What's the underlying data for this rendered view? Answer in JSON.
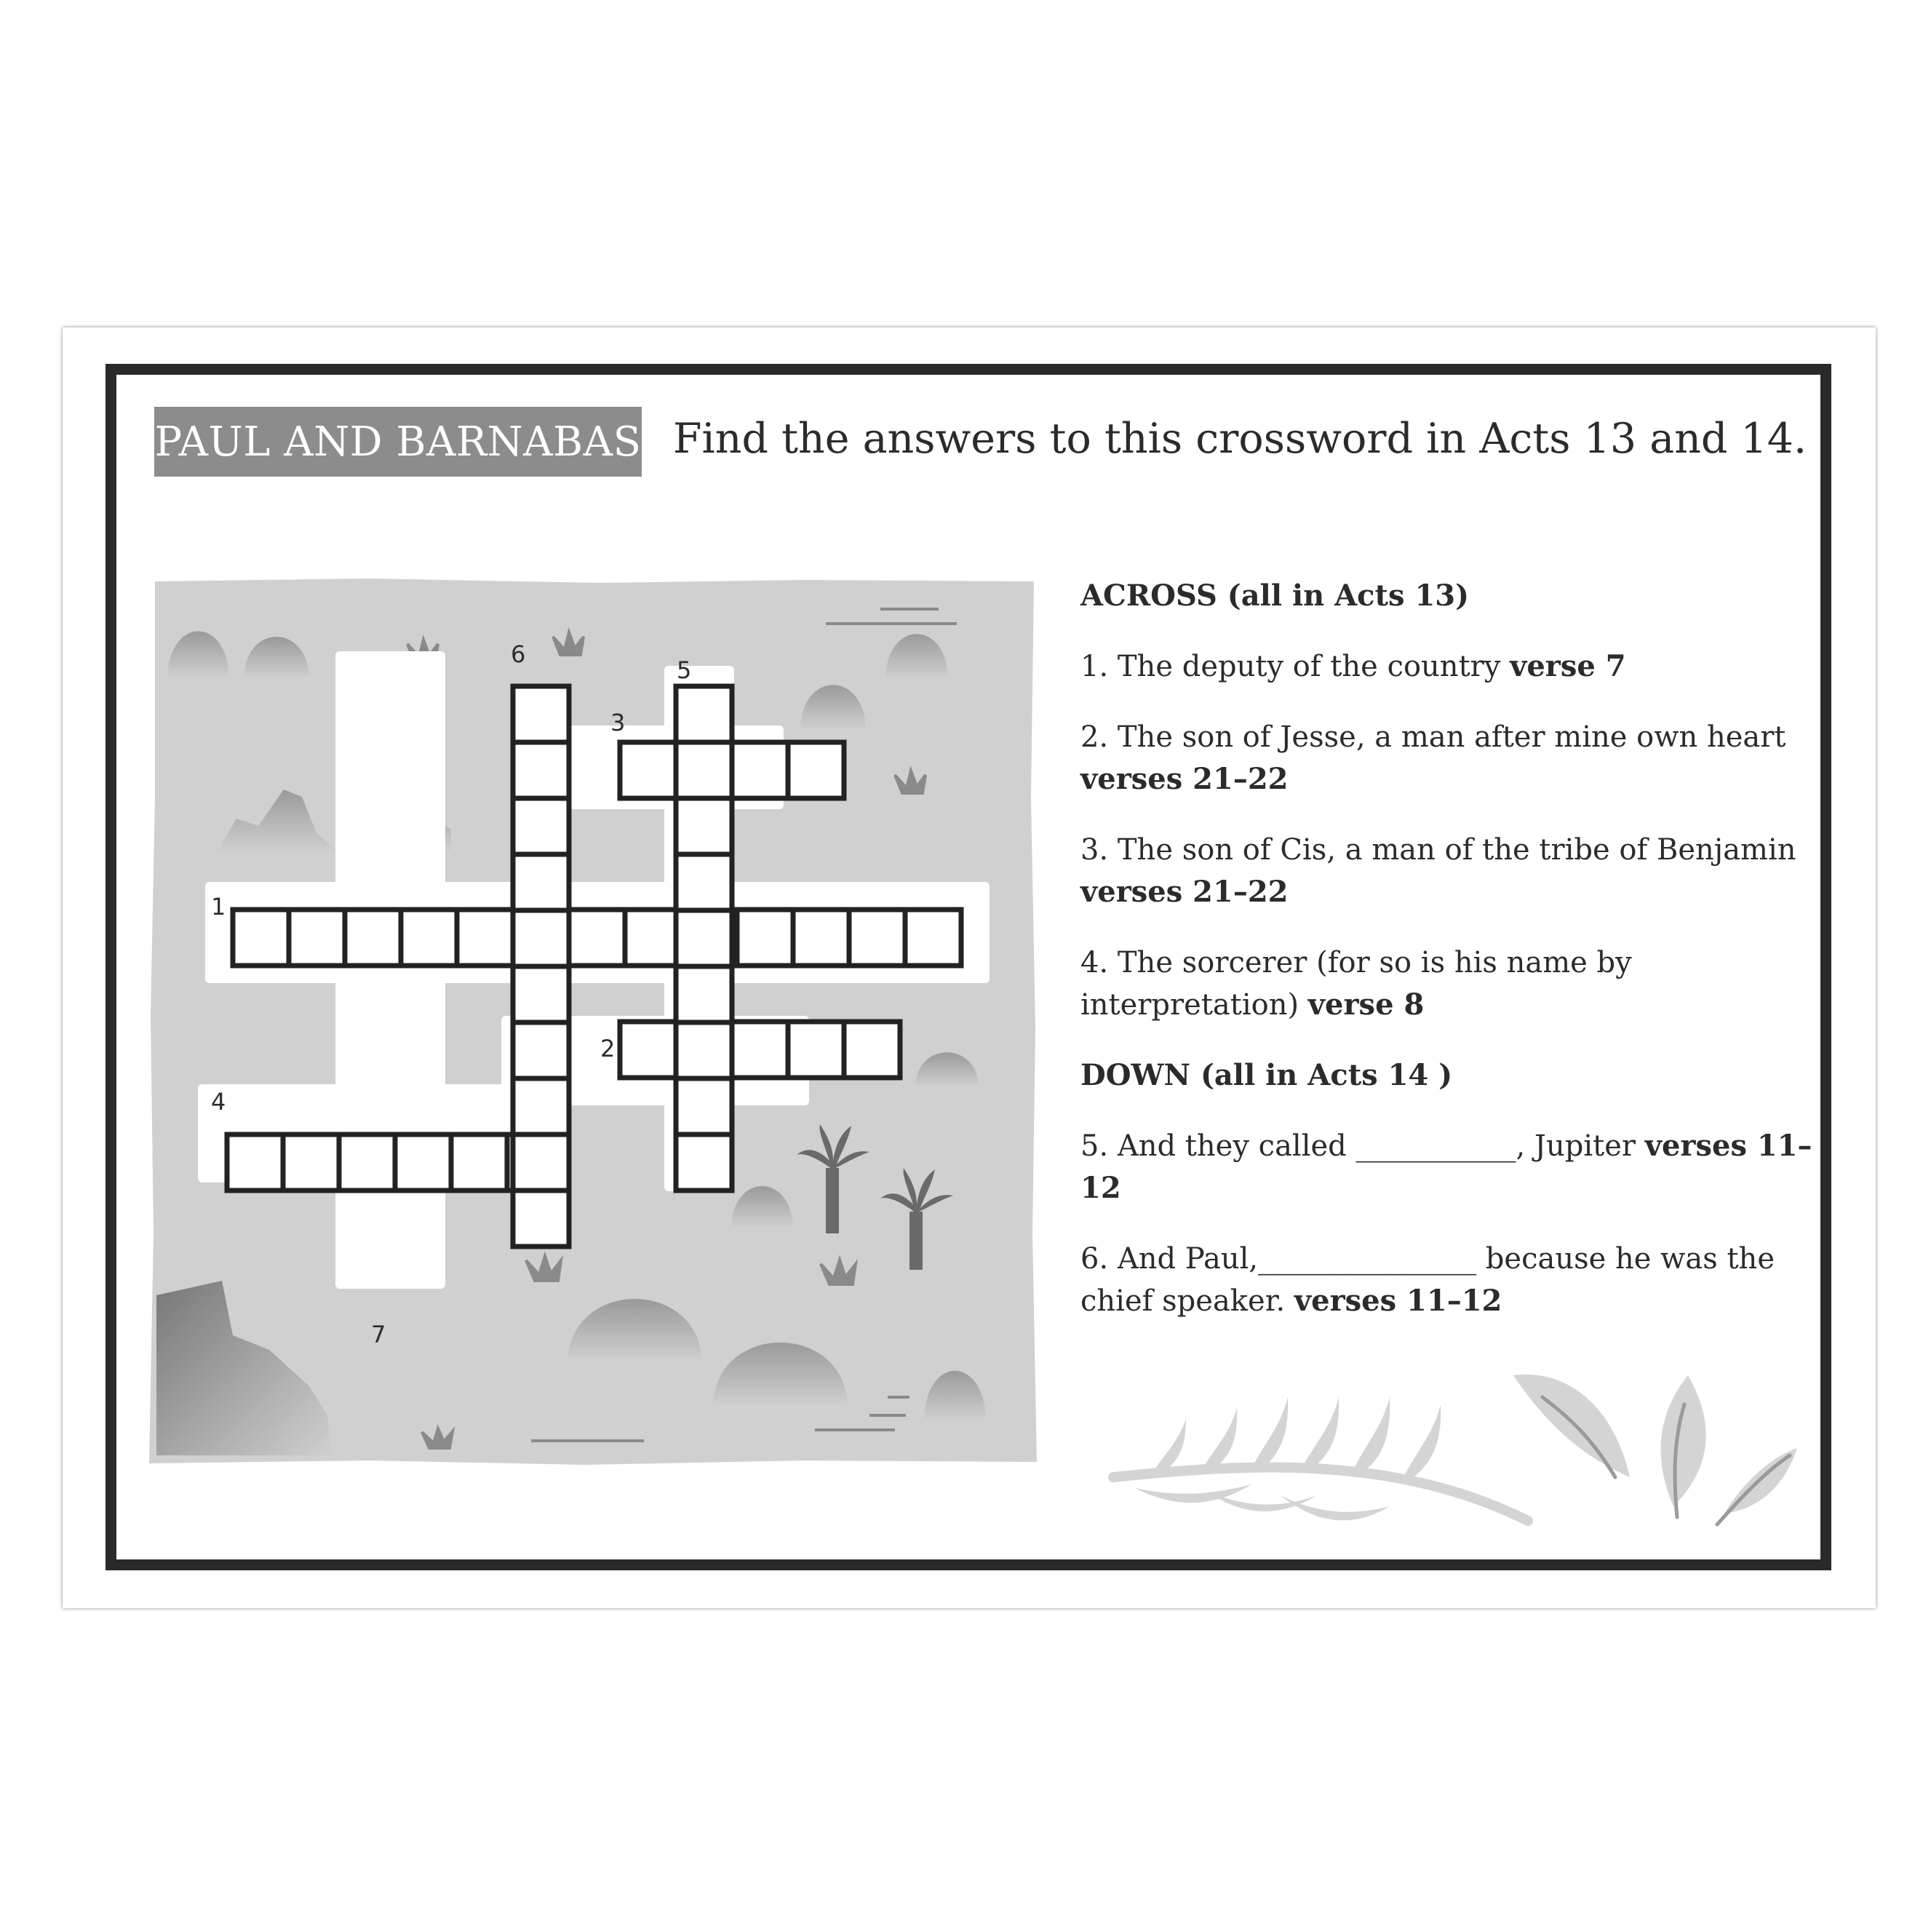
{
  "title": "PAUL AND BARNABAS",
  "instructions": "Find the answers to this crossword in Acts 13 and 14.",
  "crossword": {
    "numbers": {
      "n1": "1",
      "n2": "2",
      "n3": "3",
      "n4": "4",
      "n5": "5",
      "n6": "6",
      "n7": "7"
    }
  },
  "across": {
    "heading": "ACROSS (all in Acts 13)",
    "clues": [
      {
        "text": "1. The deputy of the country ",
        "ref": "verse 7"
      },
      {
        "text": "2. The son of Jesse, a man after mine own heart ",
        "ref": "verses 21–22"
      },
      {
        "text": "3. The son of Cis, a man of the tribe of Benjamin ",
        "ref": "verses 21–22"
      },
      {
        "text": "4. The sorcerer (for so is his name by interpretation) ",
        "ref": "verse 8"
      }
    ]
  },
  "down": {
    "heading": "DOWN (all in Acts 14 )",
    "clues": [
      {
        "text": "5. And they called ___________, Jupiter ",
        "ref": "verses 11–12"
      },
      {
        "text": "6. And Paul,_______________  because he was the chief speaker. ",
        "ref": "verses 11–12"
      }
    ]
  }
}
